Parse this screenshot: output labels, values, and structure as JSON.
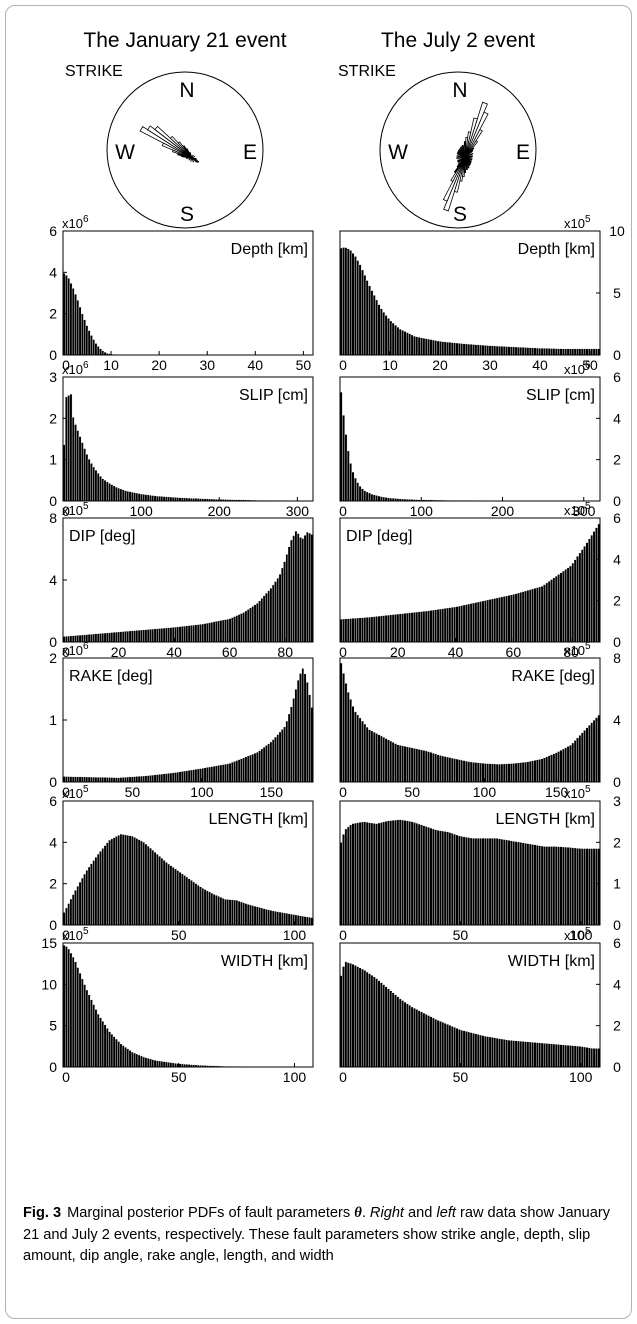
{
  "events": [
    {
      "title": "The January 21 event",
      "rose": {
        "label": "STRIKE",
        "north": "N",
        "east": "E",
        "south": "S",
        "west": "W",
        "dominant_azimuths_deg": [
          300,
          310,
          290,
          320,
          125
        ],
        "petals": [
          [
            300,
            1.0
          ],
          [
            305,
            0.9
          ],
          [
            310,
            0.8
          ],
          [
            295,
            0.55
          ],
          [
            315,
            0.5
          ],
          [
            290,
            0.35
          ],
          [
            320,
            0.35
          ],
          [
            285,
            0.25
          ],
          [
            325,
            0.25
          ],
          [
            280,
            0.18
          ],
          [
            330,
            0.18
          ],
          [
            120,
            0.13
          ],
          [
            125,
            0.12
          ],
          [
            130,
            0.1
          ],
          [
            115,
            0.09
          ],
          [
            200,
            0.06
          ],
          [
            340,
            0.1
          ],
          [
            20,
            0.05
          ],
          [
            60,
            0.05
          ],
          [
            160,
            0.07
          ],
          [
            240,
            0.06
          ],
          [
            270,
            0.1
          ],
          [
            100,
            0.07
          ]
        ]
      }
    },
    {
      "title": "The July 2 event",
      "rose": {
        "label": "STRIKE",
        "north": "N",
        "east": "E",
        "south": "S",
        "west": "W",
        "dominant_azimuths_deg": [
          20,
          25,
          200,
          205
        ],
        "petals": [
          [
            20,
            1.0
          ],
          [
            25,
            0.85
          ],
          [
            15,
            0.7
          ],
          [
            30,
            0.55
          ],
          [
            10,
            0.45
          ],
          [
            35,
            0.35
          ],
          [
            200,
            0.95
          ],
          [
            205,
            0.8
          ],
          [
            195,
            0.6
          ],
          [
            210,
            0.45
          ],
          [
            190,
            0.4
          ],
          [
            215,
            0.3
          ],
          [
            5,
            0.35
          ],
          [
            185,
            0.32
          ],
          [
            0,
            0.28
          ],
          [
            180,
            0.25
          ],
          [
            40,
            0.22
          ],
          [
            220,
            0.2
          ],
          [
            350,
            0.22
          ],
          [
            170,
            0.2
          ],
          [
            340,
            0.2
          ],
          [
            160,
            0.18
          ],
          [
            45,
            0.18
          ],
          [
            225,
            0.16
          ],
          [
            330,
            0.18
          ],
          [
            150,
            0.15
          ],
          [
            60,
            0.15
          ],
          [
            240,
            0.14
          ],
          [
            270,
            0.14
          ],
          [
            90,
            0.12
          ],
          [
            300,
            0.15
          ],
          [
            120,
            0.12
          ],
          [
            320,
            0.17
          ],
          [
            140,
            0.14
          ],
          [
            250,
            0.13
          ],
          [
            75,
            0.13
          ],
          [
            285,
            0.14
          ],
          [
            105,
            0.12
          ],
          [
            310,
            0.16
          ],
          [
            130,
            0.13
          ]
        ]
      }
    }
  ],
  "chart_data": [
    {
      "type": "bar",
      "event": "January 21",
      "param": "Depth [km]",
      "label_pos": "top-right",
      "xlim": [
        0,
        52
      ],
      "xticks": [
        0,
        10,
        20,
        30,
        40,
        50
      ],
      "ylim": [
        0,
        6
      ],
      "yticks": [
        0,
        2,
        4,
        6
      ],
      "yaxis_side": "left",
      "exponent_base": "x10",
      "exponent": "6",
      "x": [
        0,
        1,
        2,
        3,
        4,
        5,
        6,
        7,
        8,
        9,
        10,
        12,
        15,
        20,
        30,
        40,
        50
      ],
      "values": [
        4.0,
        3.8,
        3.3,
        2.7,
        2.0,
        1.4,
        0.9,
        0.5,
        0.25,
        0.1,
        0.04,
        0.01,
        0,
        0,
        0,
        0,
        0
      ]
    },
    {
      "type": "bar",
      "event": "July 2",
      "param": "Depth [km]",
      "label_pos": "top-right",
      "xlim": [
        0,
        52
      ],
      "xticks": [
        0,
        10,
        20,
        30,
        40,
        50
      ],
      "ylim": [
        0,
        10
      ],
      "yticks": [
        0,
        5,
        10
      ],
      "yaxis_side": "right",
      "exponent_base": "x10",
      "exponent": "5",
      "x": [
        0,
        1,
        2,
        3,
        4,
        5,
        6,
        7,
        8,
        9,
        10,
        12,
        15,
        20,
        25,
        30,
        35,
        40,
        45,
        50,
        52
      ],
      "values": [
        8.6,
        8.7,
        8.5,
        8.0,
        7.3,
        6.4,
        5.5,
        4.7,
        3.9,
        3.3,
        2.8,
        2.1,
        1.5,
        1.1,
        0.9,
        0.75,
        0.65,
        0.55,
        0.5,
        0.5,
        0.5
      ]
    },
    {
      "type": "bar",
      "event": "January 21",
      "param": "SLIP [cm]",
      "label_pos": "top-right",
      "xlim": [
        0,
        320
      ],
      "xticks": [
        0,
        100,
        200,
        300
      ],
      "ylim": [
        0,
        3
      ],
      "yticks": [
        0,
        1,
        2,
        3
      ],
      "yaxis_side": "left",
      "exponent_base": "x10",
      "exponent": "6",
      "x": [
        0,
        3,
        6,
        9,
        12,
        15,
        18,
        21,
        25,
        30,
        35,
        40,
        50,
        60,
        70,
        80,
        100,
        120,
        150,
        200,
        250,
        300,
        320
      ],
      "values": [
        0.1,
        2.7,
        2.3,
        2.9,
        2.1,
        1.9,
        1.75,
        1.6,
        1.4,
        1.15,
        0.95,
        0.8,
        0.55,
        0.42,
        0.32,
        0.25,
        0.17,
        0.12,
        0.08,
        0.04,
        0.02,
        0.01,
        0.01
      ]
    },
    {
      "type": "bar",
      "event": "July 2",
      "param": "SLIP [cm]",
      "label_pos": "top-right",
      "xlim": [
        0,
        320
      ],
      "xticks": [
        0,
        100,
        200,
        300
      ],
      "ylim": [
        0,
        6
      ],
      "yticks": [
        0,
        2,
        4,
        6
      ],
      "yaxis_side": "right",
      "exponent_base": "x10",
      "exponent": "6",
      "x": [
        0,
        3,
        6,
        9,
        12,
        15,
        20,
        25,
        30,
        40,
        50,
        60,
        80,
        100,
        150,
        200,
        300,
        320
      ],
      "values": [
        5.9,
        4.6,
        3.6,
        2.7,
        2.0,
        1.5,
        1.0,
        0.7,
        0.5,
        0.32,
        0.22,
        0.15,
        0.09,
        0.06,
        0.03,
        0.02,
        0.01,
        0.01
      ]
    },
    {
      "type": "bar",
      "event": "January 21",
      "param": "DIP [deg]",
      "label_pos": "top-left",
      "xlim": [
        0,
        90
      ],
      "xticks": [
        0,
        20,
        40,
        60,
        80
      ],
      "ylim": [
        0,
        8
      ],
      "yticks": [
        0,
        4,
        8
      ],
      "yaxis_side": "left",
      "exponent_base": "x10",
      "exponent": "5",
      "x": [
        0,
        10,
        20,
        30,
        40,
        50,
        60,
        65,
        70,
        75,
        78,
        80,
        82,
        84,
        86,
        88,
        90
      ],
      "values": [
        0.35,
        0.5,
        0.65,
        0.8,
        0.95,
        1.15,
        1.5,
        1.9,
        2.5,
        3.5,
        4.3,
        5.3,
        6.5,
        7.2,
        6.6,
        7.1,
        6.9
      ]
    },
    {
      "type": "bar",
      "event": "July 2",
      "param": "DIP [deg]",
      "label_pos": "top-left",
      "xlim": [
        0,
        90
      ],
      "xticks": [
        0,
        20,
        40,
        60,
        80
      ],
      "ylim": [
        0,
        6
      ],
      "yticks": [
        0,
        2,
        4,
        6
      ],
      "yaxis_side": "right",
      "exponent_base": "x10",
      "exponent": "5",
      "x": [
        0,
        10,
        20,
        30,
        40,
        50,
        60,
        70,
        80,
        85,
        90
      ],
      "values": [
        1.1,
        1.2,
        1.35,
        1.5,
        1.7,
        2.0,
        2.3,
        2.7,
        3.7,
        4.7,
        5.8
      ]
    },
    {
      "type": "bar",
      "event": "January 21",
      "param": "RAKE [deg]",
      "label_pos": "top-left",
      "xlim": [
        0,
        180
      ],
      "xticks": [
        0,
        50,
        100,
        150
      ],
      "ylim": [
        0,
        2
      ],
      "yticks": [
        0,
        1,
        2
      ],
      "yaxis_side": "left",
      "exponent_base": "x10",
      "exponent": "6",
      "x": [
        0,
        20,
        40,
        60,
        80,
        100,
        120,
        140,
        150,
        160,
        165,
        170,
        173,
        176,
        180
      ],
      "values": [
        0.09,
        0.08,
        0.07,
        0.1,
        0.15,
        0.22,
        0.3,
        0.48,
        0.65,
        0.9,
        1.25,
        1.7,
        1.85,
        1.6,
        1.1
      ]
    },
    {
      "type": "bar",
      "event": "July 2",
      "param": "RAKE [deg]",
      "label_pos": "top-right",
      "xlim": [
        0,
        180
      ],
      "xticks": [
        0,
        50,
        100,
        150
      ],
      "ylim": [
        0,
        8
      ],
      "yticks": [
        0,
        4,
        8
      ],
      "yaxis_side": "right",
      "exponent_base": "x10",
      "exponent": "5",
      "x": [
        0,
        5,
        10,
        20,
        30,
        40,
        50,
        60,
        70,
        80,
        90,
        100,
        110,
        120,
        130,
        140,
        150,
        160,
        170,
        180
      ],
      "values": [
        8.0,
        6.0,
        4.6,
        3.4,
        2.9,
        2.4,
        2.2,
        2.0,
        1.7,
        1.5,
        1.3,
        1.2,
        1.15,
        1.2,
        1.3,
        1.5,
        1.9,
        2.4,
        3.4,
        4.4
      ]
    },
    {
      "type": "bar",
      "event": "January 21",
      "param": "LENGTH [km]",
      "label_pos": "top-right",
      "xlim": [
        0,
        108
      ],
      "xticks": [
        0,
        50,
        100
      ],
      "ylim": [
        0,
        6
      ],
      "yticks": [
        0,
        2,
        4,
        6
      ],
      "yaxis_side": "left",
      "exponent_base": "x10",
      "exponent": "5",
      "x": [
        0,
        5,
        10,
        15,
        20,
        25,
        30,
        35,
        40,
        45,
        50,
        55,
        60,
        65,
        70,
        75,
        80,
        85,
        90,
        95,
        100,
        105,
        108
      ],
      "values": [
        0.5,
        1.6,
        2.6,
        3.4,
        4.1,
        4.4,
        4.3,
        4.0,
        3.5,
        3.0,
        2.6,
        2.2,
        1.8,
        1.5,
        1.25,
        1.2,
        1.0,
        0.85,
        0.7,
        0.6,
        0.5,
        0.4,
        0.35
      ]
    },
    {
      "type": "bar",
      "event": "July 2",
      "param": "LENGTH [km]",
      "label_pos": "top-right",
      "xlim": [
        0,
        108
      ],
      "xticks": [
        0,
        50,
        100
      ],
      "ylim": [
        0,
        3
      ],
      "yticks": [
        0,
        1,
        2,
        3
      ],
      "yaxis_side": "right",
      "exponent_base": "x10",
      "exponent": "5",
      "x": [
        0,
        2,
        5,
        10,
        15,
        20,
        25,
        30,
        35,
        40,
        45,
        50,
        55,
        60,
        65,
        70,
        75,
        80,
        85,
        90,
        95,
        100,
        105
      ],
      "values": [
        1.9,
        2.3,
        2.45,
        2.5,
        2.45,
        2.52,
        2.55,
        2.5,
        2.4,
        2.3,
        2.25,
        2.15,
        2.1,
        2.1,
        2.1,
        2.05,
        2.0,
        1.95,
        1.9,
        1.9,
        1.88,
        1.85,
        1.85
      ]
    },
    {
      "type": "bar",
      "event": "January 21",
      "param": "WIDTH [km]",
      "label_pos": "top-right",
      "xlim": [
        0,
        108
      ],
      "xticks": [
        0,
        50,
        100
      ],
      "ylim": [
        0,
        15
      ],
      "yticks": [
        0,
        5,
        10,
        15
      ],
      "yaxis_side": "left",
      "exponent_base": "x10",
      "exponent": "5",
      "x": [
        0,
        2,
        5,
        10,
        15,
        20,
        25,
        30,
        35,
        40,
        50,
        60,
        70,
        80,
        90,
        100,
        108
      ],
      "values": [
        14.8,
        14.5,
        13.0,
        9.5,
        6.5,
        4.3,
        2.8,
        1.8,
        1.2,
        0.8,
        0.4,
        0.2,
        0.1,
        0.05,
        0.03,
        0.02,
        0.01
      ]
    },
    {
      "type": "bar",
      "event": "July 2",
      "param": "WIDTH [km]",
      "label_pos": "top-right",
      "xlim": [
        0,
        108
      ],
      "xticks": [
        0,
        50,
        100
      ],
      "ylim": [
        0,
        6
      ],
      "yticks": [
        0,
        2,
        4,
        6
      ],
      "yaxis_side": "right",
      "exponent_base": "x10",
      "exponent": "5",
      "x": [
        0,
        2,
        5,
        10,
        15,
        20,
        25,
        30,
        40,
        50,
        60,
        70,
        80,
        90,
        100,
        105
      ],
      "values": [
        4.2,
        5.1,
        5.0,
        4.7,
        4.3,
        3.8,
        3.3,
        2.9,
        2.3,
        1.8,
        1.5,
        1.3,
        1.2,
        1.1,
        1.0,
        0.9
      ]
    }
  ],
  "caption": {
    "label": "Fig. 3",
    "text_1": "Marginal posterior PDFs of fault parameters ",
    "symbol": "θ",
    "text_2": ". ",
    "right": "Right",
    "text_3": " and ",
    "left": "left",
    "text_4": " raw data show January 21 and July 2 events, respectively. These fault parameters show strike angle, depth, slip amount, dip angle, rake angle, length, and width"
  }
}
